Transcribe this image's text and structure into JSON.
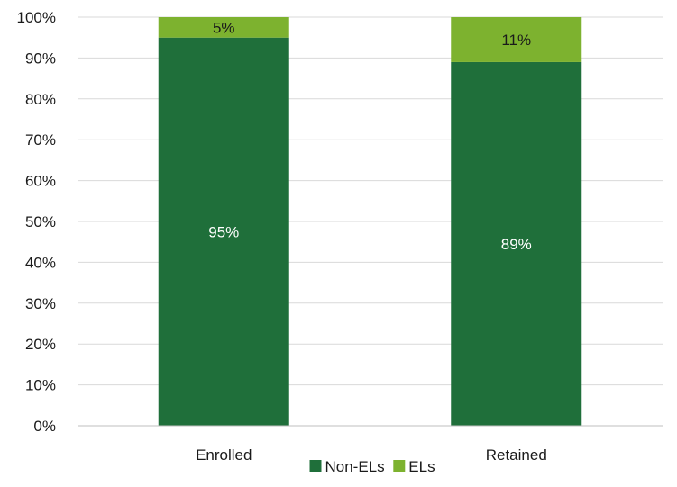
{
  "chart_data": {
    "type": "bar",
    "stacked": true,
    "categories": [
      "Enrolled",
      "Retained"
    ],
    "series": [
      {
        "name": "Non-ELs",
        "values": [
          95,
          89
        ],
        "labels": [
          "95%",
          "89%"
        ],
        "color": "#1f6f3a",
        "label_color": "#ffffff"
      },
      {
        "name": "ELs",
        "values": [
          5,
          11
        ],
        "labels": [
          "5%",
          "11%"
        ],
        "color": "#7db22f",
        "label_color": "#1a1a1a"
      }
    ],
    "ylim": [
      0,
      100
    ],
    "yticks": [
      "0%",
      "10%",
      "20%",
      "30%",
      "40%",
      "50%",
      "60%",
      "70%",
      "80%",
      "90%",
      "100%"
    ],
    "grid": true,
    "legend_position": "bottom",
    "title": "",
    "xlabel": "",
    "ylabel": ""
  },
  "colors": {
    "gridline": "#d9d9d9",
    "axis": "#bfbfbf",
    "text": "#1a1a1a"
  }
}
